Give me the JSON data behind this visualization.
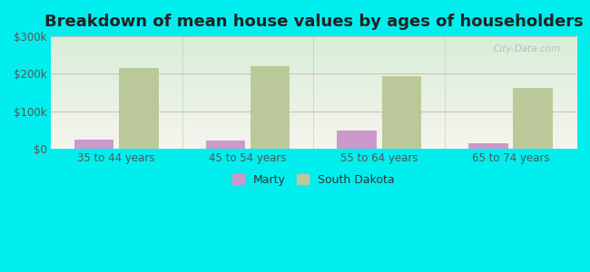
{
  "title": "Breakdown of mean house values by ages of householders",
  "categories": [
    "35 to 44 years",
    "45 to 54 years",
    "55 to 64 years",
    "65 to 74 years"
  ],
  "marty_values": [
    25000,
    22000,
    50000,
    15000
  ],
  "sd_values": [
    215000,
    220000,
    195000,
    163000
  ],
  "marty_color": "#cc99cc",
  "sd_color": "#bbc99a",
  "ylim": [
    0,
    300000
  ],
  "yticks": [
    0,
    100000,
    200000,
    300000
  ],
  "ytick_labels": [
    "$0",
    "$100k",
    "$200k",
    "$300k"
  ],
  "background_color": "#00EEEE",
  "plot_bg_top": "#f5f5ee",
  "plot_bg_bottom": "#d8eed8",
  "title_fontsize": 13,
  "legend_marty": "Marty",
  "legend_sd": "South Dakota",
  "watermark": "City-Data.com",
  "bar_width": 0.3,
  "bar_gap": 0.04
}
